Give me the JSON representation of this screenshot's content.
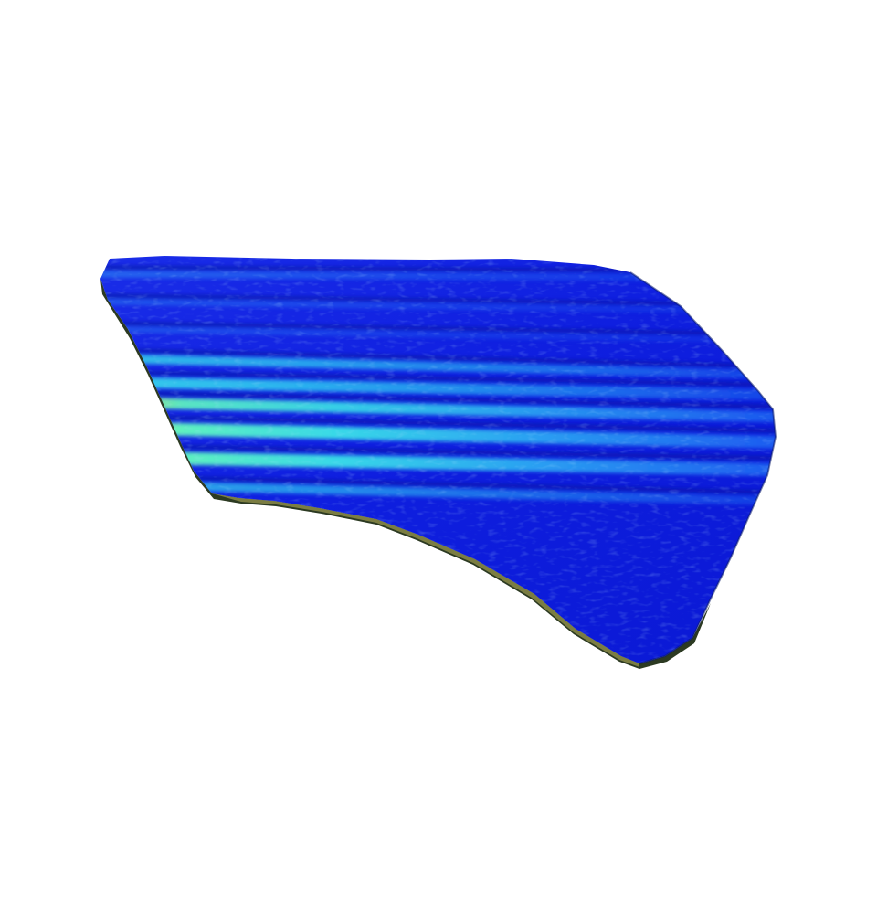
{
  "scene": {
    "background_color": "#ffffff",
    "object": "scanned-fragment-3d-surface",
    "colormap": {
      "low": "#0a14d8",
      "mid": "#1e78f0",
      "high": "#3ce6d2",
      "peak": "#c8f046"
    },
    "edge_color": "#6b6a3a",
    "stripe_count": 9
  }
}
